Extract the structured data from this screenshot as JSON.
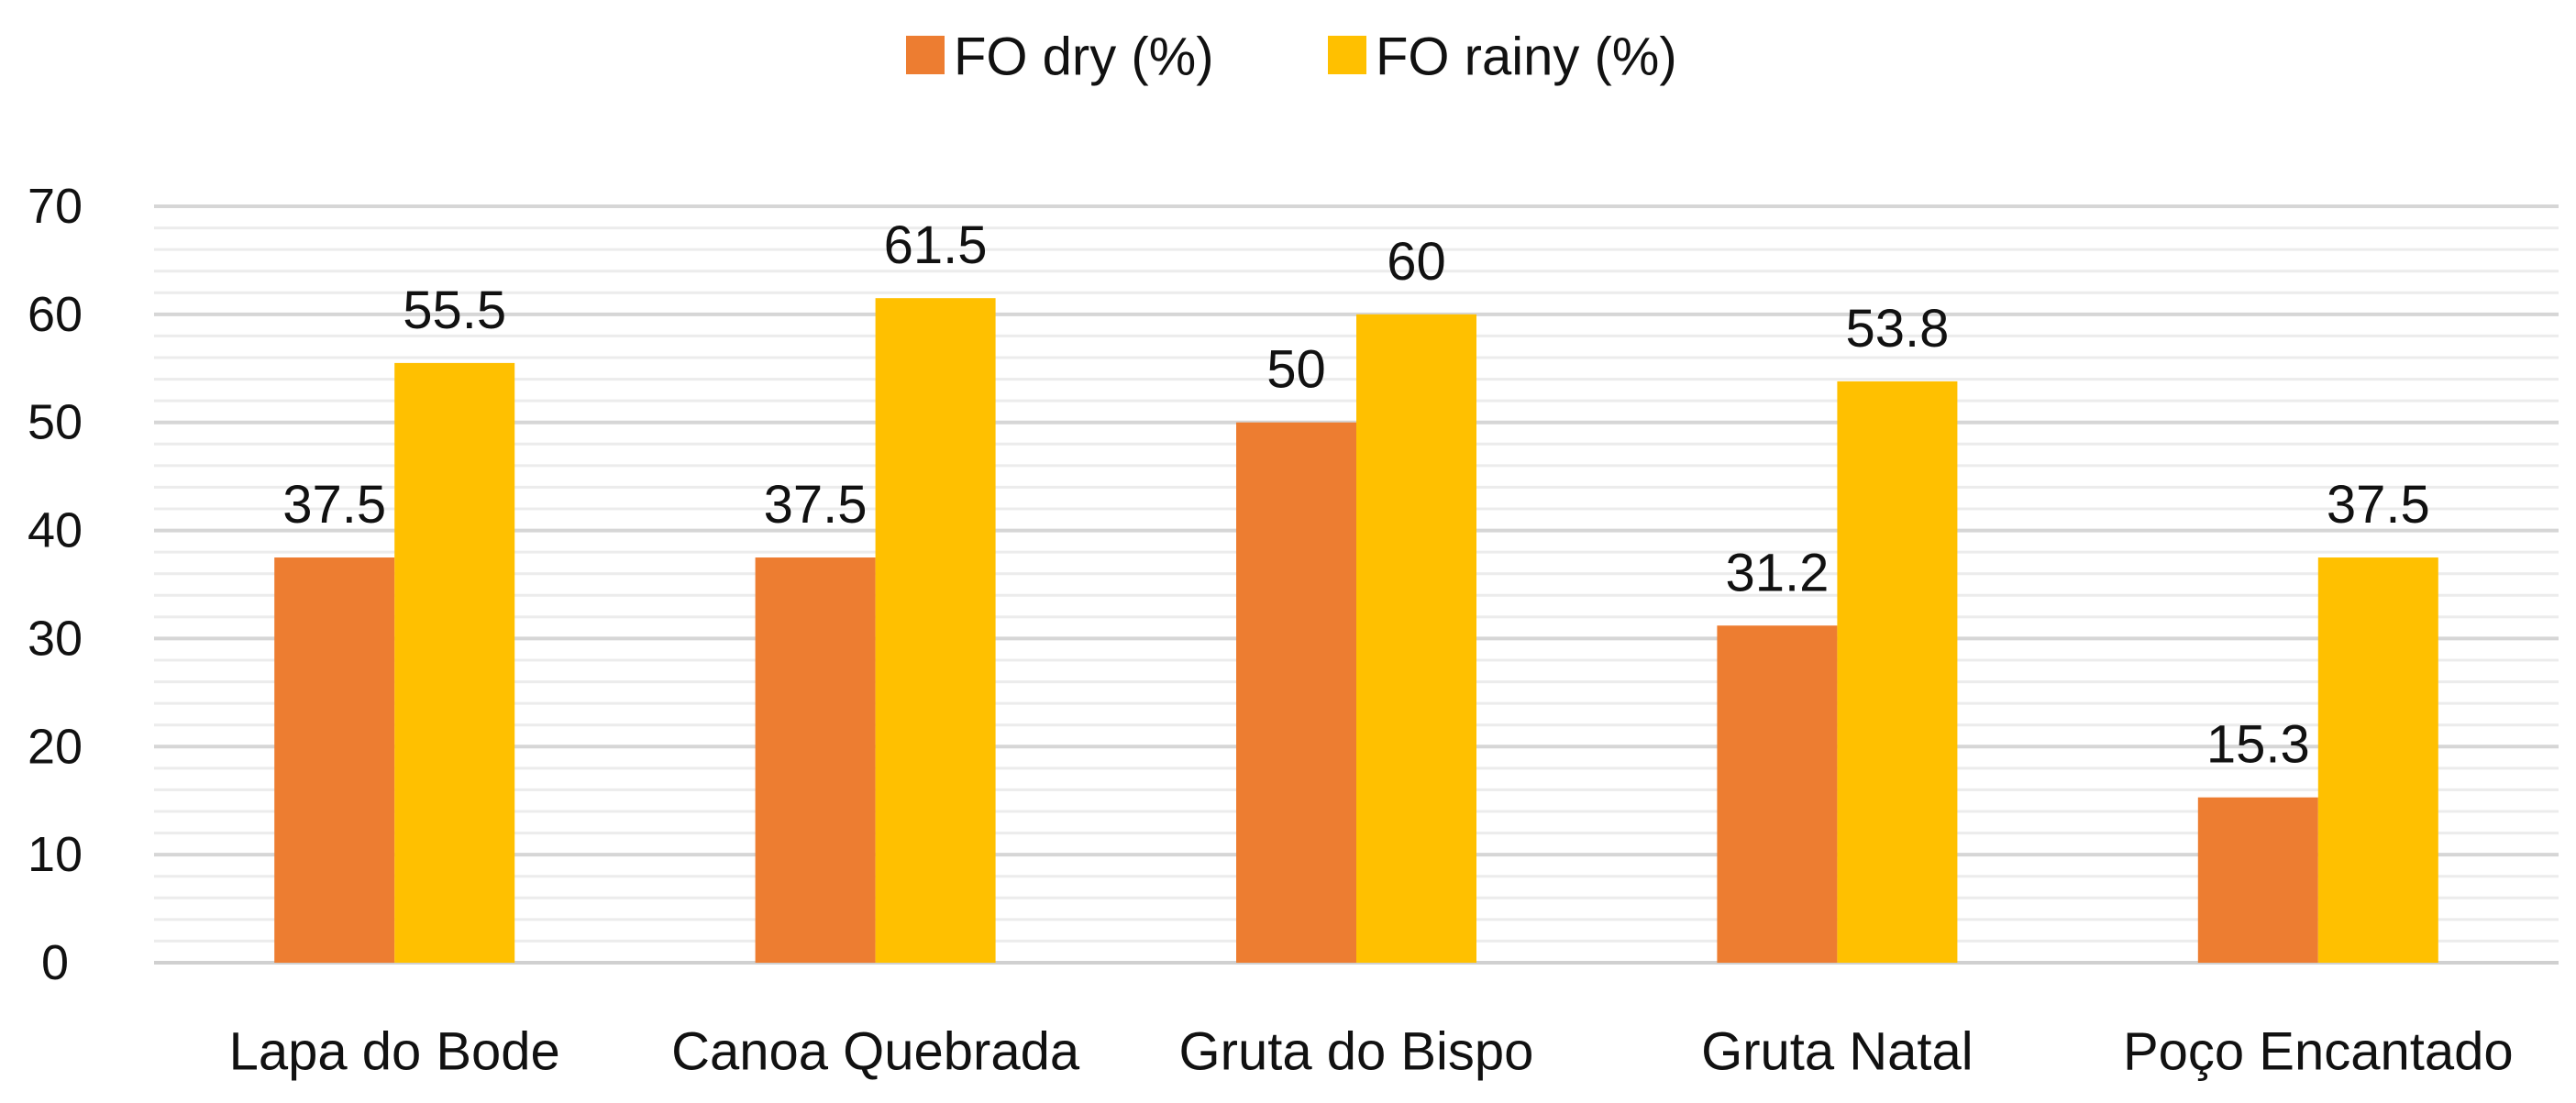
{
  "chart_data": {
    "type": "bar",
    "title": "",
    "xlabel": "",
    "ylabel": "",
    "categories": [
      "Lapa do Bode",
      "Canoa Quebrada",
      "Gruta do Bispo",
      "Gruta Natal",
      "Poço Encantado"
    ],
    "series": [
      {
        "name": "FO dry (%)",
        "color": "#ED7D31",
        "values": [
          37.5,
          37.5,
          50,
          31.2,
          15.3
        ],
        "labels": [
          "37.5",
          "37.5",
          "50",
          "31.2",
          "15.3"
        ]
      },
      {
        "name": "FO rainy (%)",
        "color": "#FFC000",
        "values": [
          55.5,
          61.5,
          60,
          53.8,
          37.5
        ],
        "labels": [
          "55.5",
          "61.5",
          "60",
          "53.8",
          "37.5"
        ]
      }
    ],
    "ylim": [
      0,
      70
    ],
    "yticks": [
      0,
      10,
      20,
      30,
      40,
      50,
      60,
      70
    ],
    "grid": true,
    "legend": "top-center"
  }
}
